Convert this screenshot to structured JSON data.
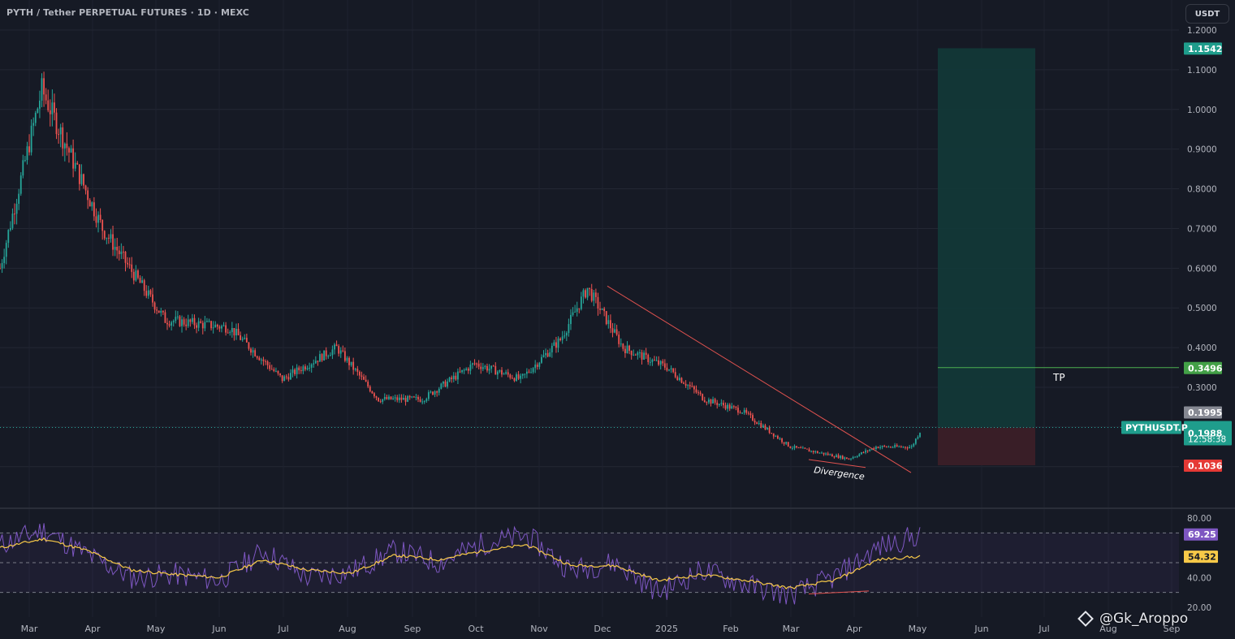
{
  "header": {
    "title": "PYTH / Tether PERPETUAL FUTURES · 1D · MEXC",
    "currency": "USDT"
  },
  "price_axis": {
    "ticks": [
      "1.2000",
      "1.1000",
      "1.0000",
      "0.9000",
      "0.8000",
      "0.7000",
      "0.6000",
      "0.5000",
      "0.4000",
      "0.3000"
    ],
    "labels": {
      "target": "1.1542",
      "tp": "0.3496",
      "high_marker": "0.1995",
      "current": "0.1988",
      "countdown": "12:58:38",
      "stop": "0.1036",
      "symbol": "PYTHUSDT.P"
    }
  },
  "rsi_axis": {
    "ticks": [
      "80.00",
      "40.00",
      "20.00"
    ],
    "labels": {
      "rsi": "69.25",
      "ma": "54.32"
    }
  },
  "time_axis": {
    "labels": [
      "Mar",
      "Apr",
      "May",
      "Jun",
      "Jul",
      "Aug",
      "Sep",
      "Oct",
      "Nov",
      "Dec",
      "2025",
      "Feb",
      "Mar",
      "Apr",
      "May",
      "Jun",
      "Jul",
      "Aug",
      "Sep"
    ]
  },
  "annotations": {
    "tp_label": "TP",
    "divergence_label": "Divergence"
  },
  "watermark": "@Gk_Aroppo",
  "colors": {
    "background": "#161a25",
    "up": "#26a69a",
    "down": "#ef5350",
    "tp_line": "#4caf50",
    "rsi": "#7e57c2",
    "rsi_ma": "#f7c948",
    "trendline": "#e0524f",
    "target_zone": "#123a38",
    "stop_zone": "#3b1f27"
  },
  "chart_data": [
    {
      "type": "candlestick",
      "title": "PYTH / Tether PERPETUAL FUTURES · 1D · MEXC",
      "xlabel": "",
      "ylabel": "USDT",
      "x": [
        "2024-02-26",
        "2024-03-17",
        "2024-04-15",
        "2024-05-15",
        "2024-06-15",
        "2024-07-10",
        "2024-08-05",
        "2024-08-25",
        "2024-09-15",
        "2024-10-10",
        "2024-11-01",
        "2024-11-20",
        "2024-12-03",
        "2024-12-20",
        "2025-01-10",
        "2025-01-28",
        "2025-02-15",
        "2025-03-10",
        "2025-04-07",
        "2025-04-20",
        "2025-05-07",
        "2025-05-12"
      ],
      "close": [
        0.6,
        1.05,
        0.7,
        0.47,
        0.45,
        0.32,
        0.4,
        0.27,
        0.27,
        0.36,
        0.32,
        0.42,
        0.55,
        0.4,
        0.35,
        0.27,
        0.24,
        0.15,
        0.12,
        0.15,
        0.15,
        0.1988
      ],
      "ylim": [
        0.05,
        1.25
      ],
      "grid": true
    },
    {
      "type": "line",
      "title": "RSI",
      "series": [
        {
          "name": "RSI",
          "values": [
            62,
            72,
            55,
            40,
            42,
            38,
            58,
            40,
            44,
            58,
            50,
            63,
            68,
            45,
            50,
            30,
            45,
            35,
            28,
            40,
            60,
            69.25
          ]
        },
        {
          "name": "RSI MA",
          "values": [
            60,
            66,
            58,
            45,
            42,
            40,
            52,
            45,
            43,
            55,
            52,
            58,
            62,
            48,
            48,
            38,
            42,
            38,
            33,
            38,
            52,
            54.32
          ]
        }
      ],
      "ylim": [
        20,
        82
      ]
    }
  ],
  "trade_setup": {
    "target": 1.1542,
    "take_profit": 0.3496,
    "entry": 0.1988,
    "stop": 0.1036
  }
}
